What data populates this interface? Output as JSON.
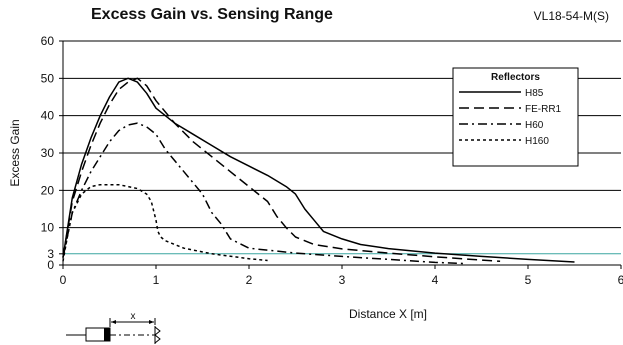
{
  "chart_data": {
    "type": "line",
    "title": "Excess Gain vs. Sensing Range",
    "model": "VL18-54-M(S)",
    "xlabel": "Distance X [m]",
    "ylabel": "Excess Gain",
    "xlim": [
      0,
      6
    ],
    "ylim": [
      0,
      60
    ],
    "x_ticks": [
      "0",
      "1",
      "2",
      "3",
      "4",
      "5",
      "6"
    ],
    "y_ticks": [
      "0",
      "3",
      "10",
      "20",
      "30",
      "40",
      "50",
      "60"
    ],
    "y_tick_values": [
      0,
      3,
      10,
      20,
      30,
      40,
      50,
      60
    ],
    "reference_line": {
      "y": 3,
      "color": "#3aa6a0"
    },
    "legend_title": "Reflectors",
    "legend_position": "top-right",
    "diagram_label": "x",
    "series": [
      {
        "name": "H85",
        "style": "solid",
        "x": [
          0,
          0.1,
          0.2,
          0.3,
          0.4,
          0.5,
          0.6,
          0.7,
          0.8,
          0.9,
          1.0,
          1.2,
          1.4,
          1.6,
          1.8,
          2.0,
          2.2,
          2.4,
          2.5,
          2.6,
          2.7,
          2.8,
          3.0,
          3.2,
          3.5,
          4.0,
          4.5,
          5.0,
          5.5
        ],
        "y": [
          2,
          18,
          27,
          34,
          40,
          45,
          49,
          50,
          49,
          46,
          42,
          38,
          35,
          32,
          29,
          26.5,
          24,
          21,
          19,
          15,
          12,
          9,
          7,
          5.5,
          4.4,
          3.2,
          2.3,
          1.5,
          0.8
        ]
      },
      {
        "name": "FE-RR1",
        "style": "long-dash",
        "x": [
          0,
          0.1,
          0.2,
          0.3,
          0.4,
          0.5,
          0.6,
          0.7,
          0.8,
          0.9,
          1.0,
          1.2,
          1.4,
          1.6,
          1.8,
          2.0,
          2.2,
          2.3,
          2.4,
          2.5,
          2.7,
          3.0,
          3.5,
          4.0,
          4.5,
          4.7
        ],
        "y": [
          2,
          17,
          25,
          32,
          38,
          43,
          47,
          49,
          50,
          48,
          44,
          38,
          33,
          29,
          25,
          21,
          17,
          13,
          10,
          7.5,
          5.5,
          4.3,
          3.2,
          2.2,
          1.3,
          1.0
        ]
      },
      {
        "name": "H60",
        "style": "dash-dot",
        "x": [
          0,
          0.1,
          0.2,
          0.3,
          0.4,
          0.5,
          0.6,
          0.7,
          0.8,
          0.9,
          1.0,
          1.1,
          1.2,
          1.3,
          1.4,
          1.5,
          1.6,
          1.7,
          1.8,
          2.0,
          2.5,
          3.0,
          3.5,
          4.0,
          4.3
        ],
        "y": [
          2,
          14,
          20,
          25,
          29,
          33,
          36,
          37.5,
          38,
          37,
          35,
          31,
          28,
          25,
          22,
          19,
          14,
          11,
          7,
          4.5,
          3.2,
          2.3,
          1.5,
          0.7,
          0.4
        ]
      },
      {
        "name": "H160",
        "style": "short-dash",
        "x": [
          0,
          0.05,
          0.1,
          0.2,
          0.3,
          0.4,
          0.5,
          0.6,
          0.7,
          0.8,
          0.9,
          0.95,
          1.0,
          1.02,
          1.05,
          1.1,
          1.3,
          1.6,
          2.0,
          2.2
        ],
        "y": [
          1,
          8,
          14,
          19,
          21,
          21.5,
          21.5,
          21.5,
          21,
          20.5,
          19,
          17,
          12,
          9,
          7.5,
          6.5,
          4.5,
          3,
          1.7,
          1.2
        ]
      }
    ]
  }
}
